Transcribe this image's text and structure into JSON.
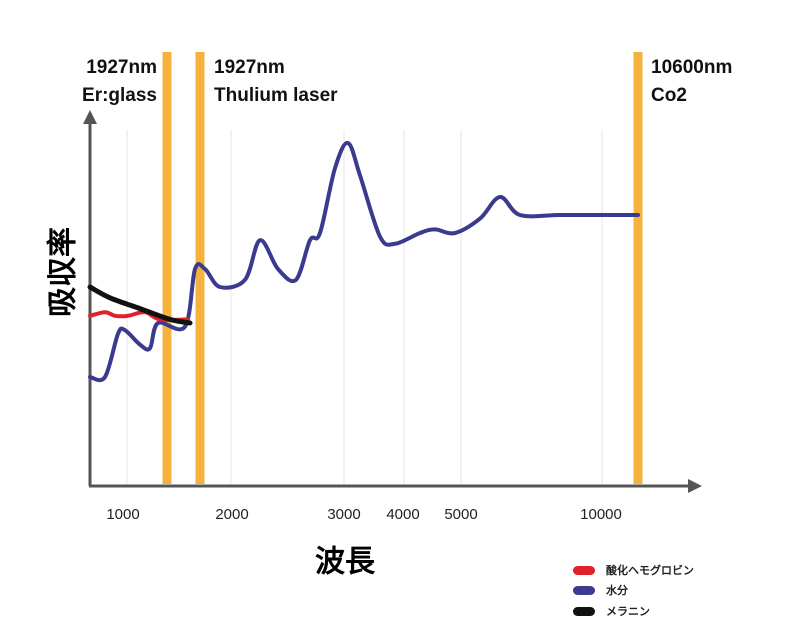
{
  "chart_data": {
    "type": "line",
    "title": "",
    "xlabel": "波長",
    "ylabel": "吸収率",
    "x_tick_labels": [
      "1000",
      "2000",
      "3000",
      "4000",
      "5000",
      "10000"
    ],
    "grid": true,
    "legend_position": "bottom-right",
    "markers": [
      {
        "id": "er",
        "line1": "1927nm",
        "line2": "Er:glass",
        "color": "#f5b23c"
      },
      {
        "id": "thulium",
        "line1": "1927nm",
        "line2": "Thulium laser",
        "color": "#f5b23c"
      },
      {
        "id": "co2",
        "line1": "10600nm",
        "line2": "Co2",
        "color": "#f5b23c"
      }
    ],
    "series": [
      {
        "name": "酸化ヘモグロビン",
        "color": "#e0202a",
        "points": [
          [
            90,
            0.47
          ],
          [
            105,
            0.48
          ],
          [
            115,
            0.47
          ],
          [
            128,
            0.47
          ],
          [
            145,
            0.48
          ],
          [
            160,
            0.46
          ],
          [
            188,
            0.46
          ]
        ]
      },
      {
        "name": "水分",
        "color": "#3a3a8e",
        "points": [
          [
            90,
            0.3
          ],
          [
            105,
            0.3
          ],
          [
            118,
            0.42
          ],
          [
            125,
            0.43
          ],
          [
            140,
            0.39
          ],
          [
            150,
            0.38
          ],
          [
            158,
            0.45
          ],
          [
            185,
            0.44
          ],
          [
            195,
            0.6
          ],
          [
            205,
            0.6
          ],
          [
            220,
            0.55
          ],
          [
            245,
            0.57
          ],
          [
            260,
            0.68
          ],
          [
            278,
            0.6
          ],
          [
            296,
            0.57
          ],
          [
            310,
            0.68
          ],
          [
            320,
            0.7
          ],
          [
            335,
            0.88
          ],
          [
            348,
            0.95
          ],
          [
            360,
            0.86
          ],
          [
            380,
            0.69
          ],
          [
            395,
            0.67
          ],
          [
            420,
            0.7
          ],
          [
            435,
            0.71
          ],
          [
            455,
            0.7
          ],
          [
            480,
            0.74
          ],
          [
            500,
            0.8
          ],
          [
            520,
            0.75
          ],
          [
            560,
            0.75
          ],
          [
            600,
            0.75
          ],
          [
            638,
            0.75
          ]
        ]
      },
      {
        "name": "メラニン",
        "color": "#111111",
        "points": [
          [
            90,
            0.55
          ],
          [
            110,
            0.52
          ],
          [
            140,
            0.49
          ],
          [
            170,
            0.46
          ],
          [
            190,
            0.45
          ]
        ]
      }
    ]
  }
}
